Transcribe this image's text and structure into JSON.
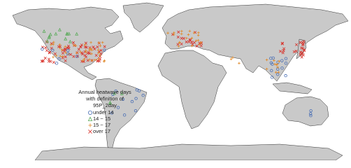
{
  "legend": {
    "title_lines": [
      "Annual heatwave days",
      "with definition of",
      "95P_2day"
    ],
    "items": [
      {
        "label": "under 14",
        "color": "#4a6fb5",
        "symbol": "circle"
      },
      {
        "label": "14 ~ 15",
        "color": "#5aaa5a",
        "symbol": "triangle"
      },
      {
        "label": "15 ~ 17",
        "color": "#e08a2a",
        "symbol": "plus"
      },
      {
        "label": "over 17",
        "color": "#d8322a",
        "symbol": "cross"
      }
    ]
  }
}
